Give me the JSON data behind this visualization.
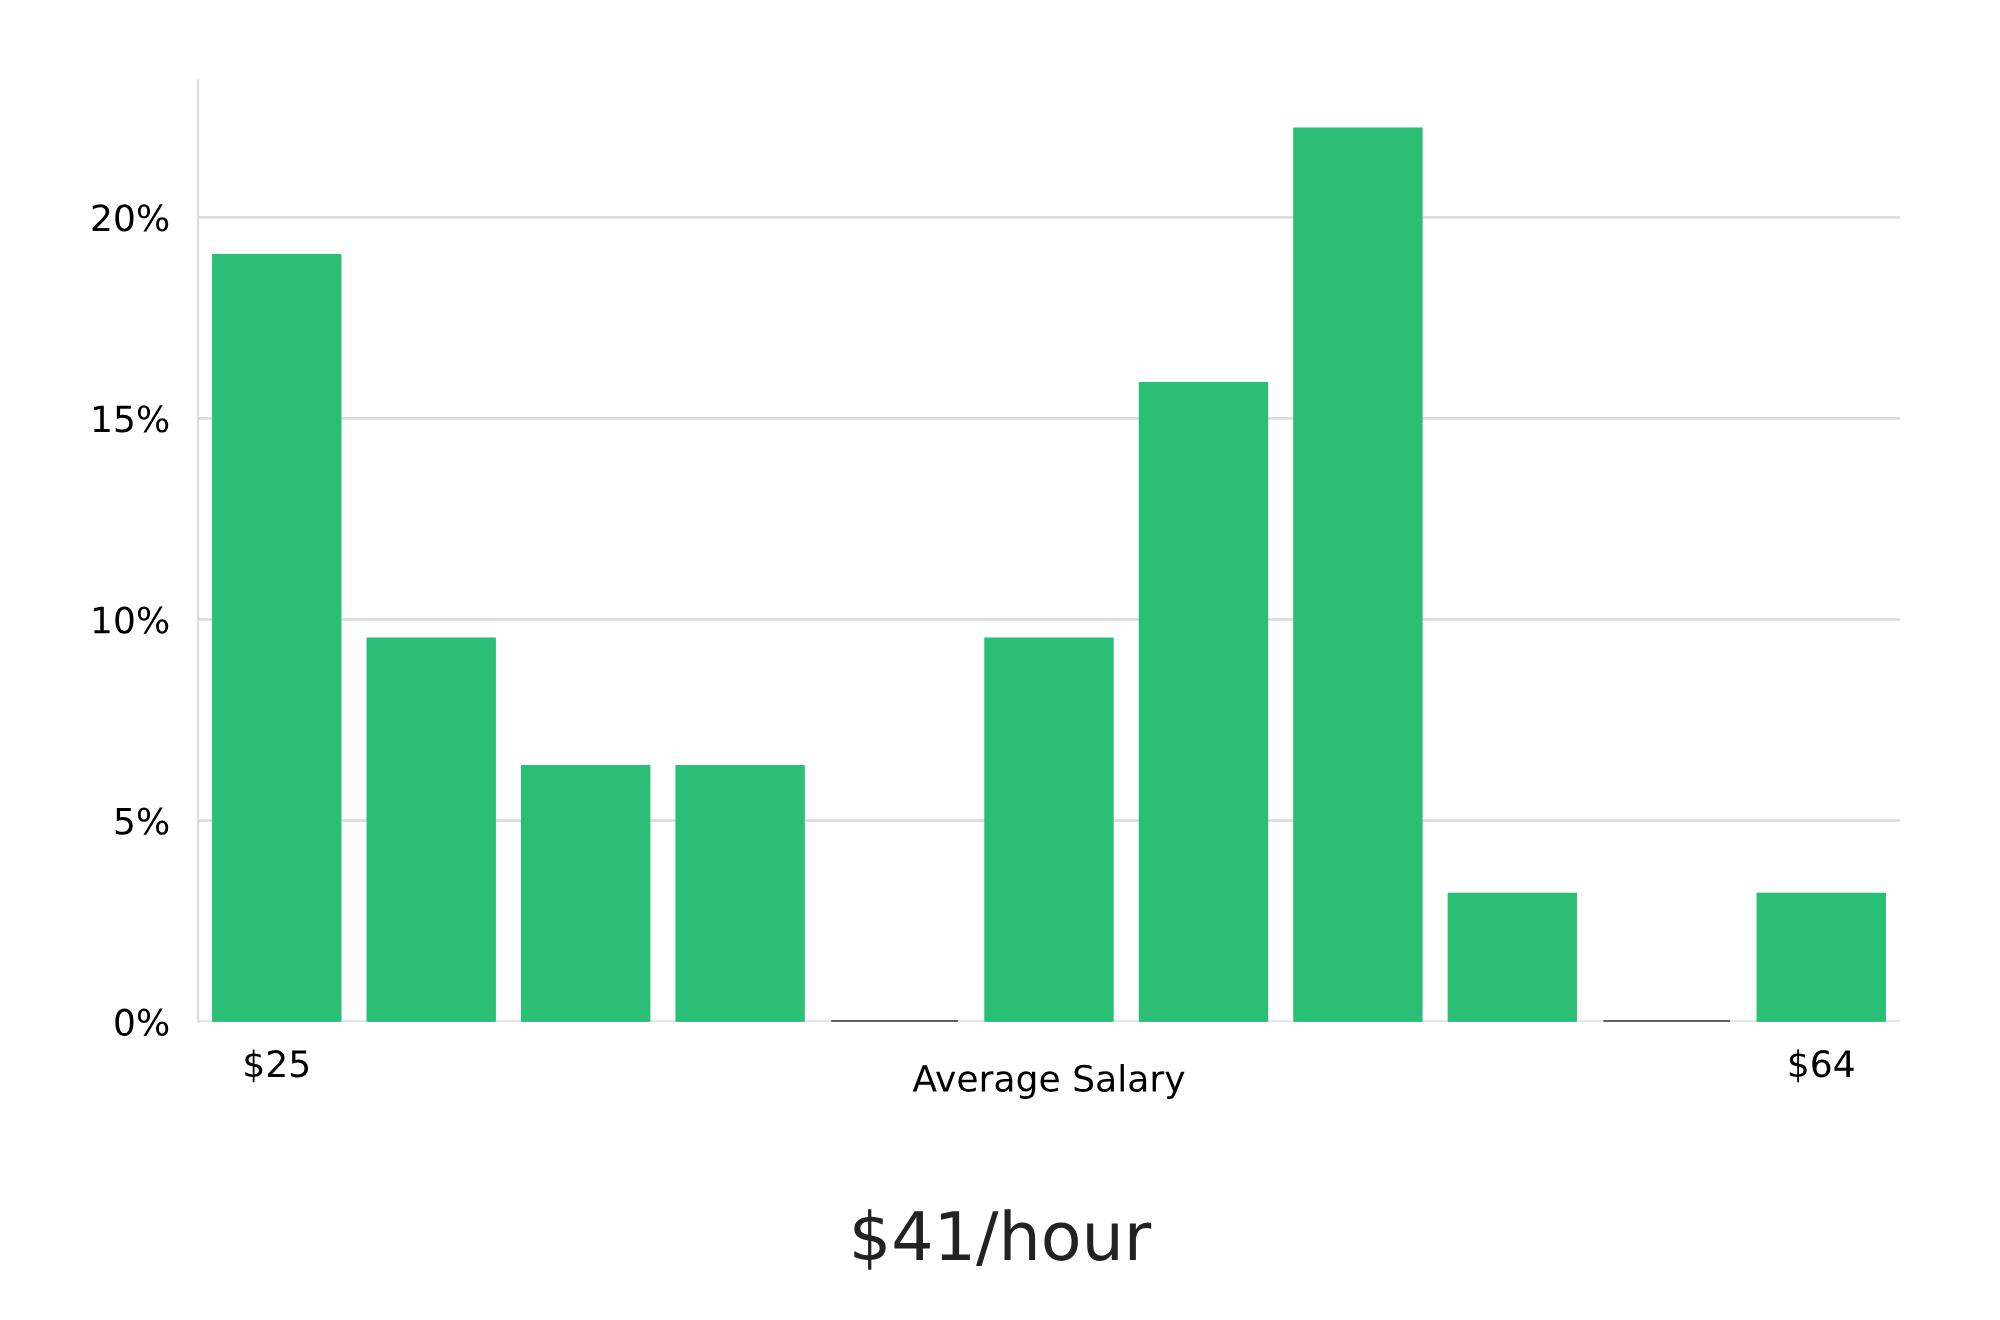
{
  "chart_data": {
    "type": "bar",
    "xlabel": "Average Salary",
    "categories": [
      "$25",
      null,
      null,
      null,
      null,
      null,
      null,
      null,
      null,
      null,
      "$64"
    ],
    "values": [
      19.05,
      9.52,
      6.35,
      6.35,
      0,
      9.52,
      15.87,
      22.2,
      3.17,
      0,
      3.17
    ],
    "colors": [
      "#2bbf76",
      "#2bbf76",
      "#2bbf76",
      "#2bbf76",
      "#333333",
      "#2bbf76",
      "#2bbf76",
      "#2bbf76",
      "#2bbf76",
      "#333333",
      "#2bbf76"
    ],
    "ylim": [
      0,
      23.4
    ],
    "yticks": [
      {
        "value": 0,
        "label": "0%"
      },
      {
        "value": 5,
        "label": "5%"
      },
      {
        "value": 10,
        "label": "10%"
      },
      {
        "value": 15,
        "label": "15%"
      },
      {
        "value": 20,
        "label": "20%"
      }
    ],
    "grid": "y",
    "annotations": [
      "$41/hour"
    ]
  }
}
